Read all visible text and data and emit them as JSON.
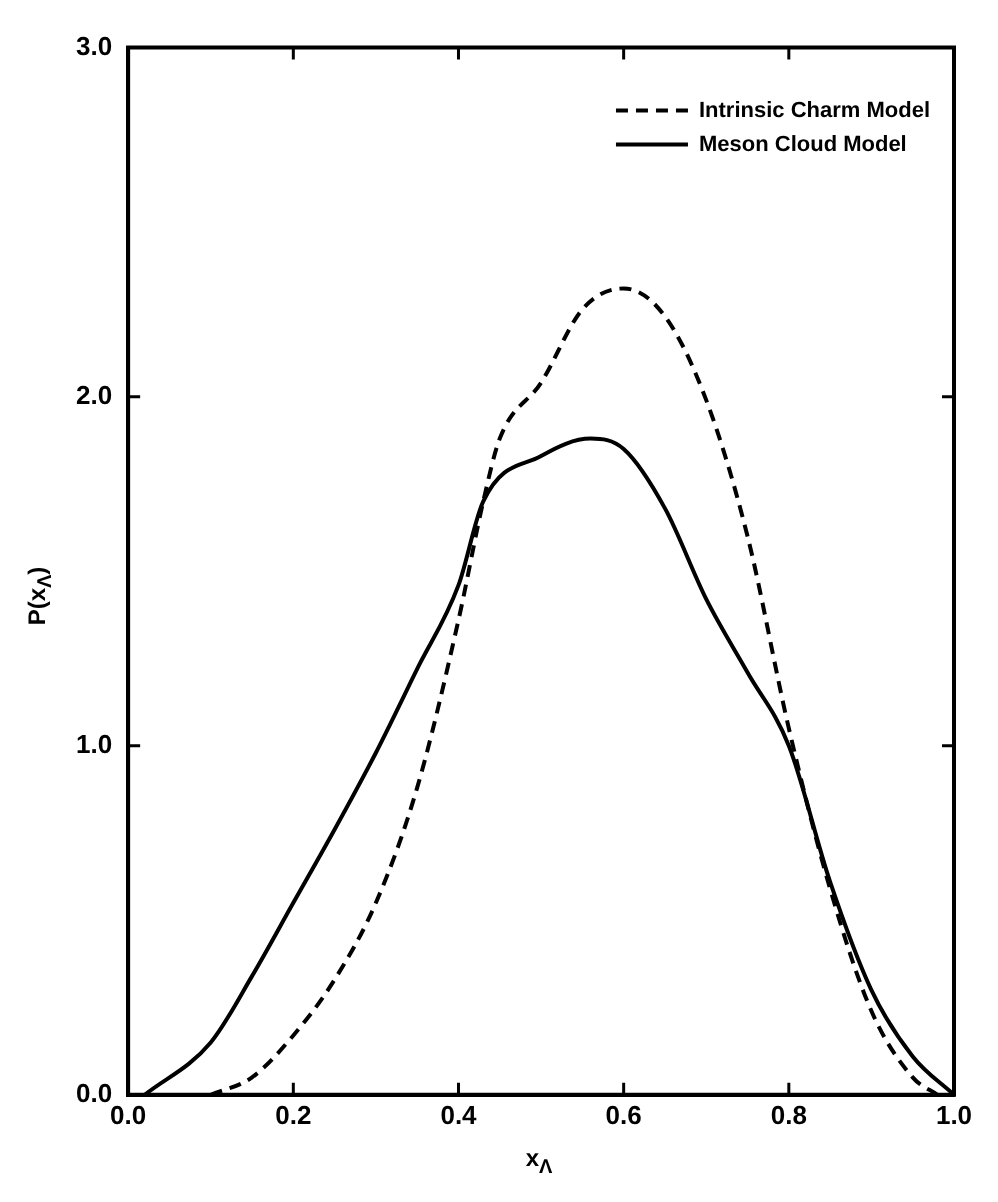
{
  "chart_data": {
    "type": "line",
    "xlabel": "x$_{Λ}$",
    "ylabel": "P(x$_{Λ}$)",
    "xlim": [
      0,
      1
    ],
    "ylim": [
      0,
      3
    ],
    "xticks": [
      {
        "value": 0,
        "label": "0.0"
      },
      {
        "value": 0.2,
        "label": "0.2"
      },
      {
        "value": 0.4,
        "label": "0.4"
      },
      {
        "value": 0.6,
        "label": "0.6"
      },
      {
        "value": 0.8,
        "label": "0.8"
      },
      {
        "value": 1,
        "label": "1.0"
      }
    ],
    "yticks": [
      {
        "value": 0,
        "label": "0.0"
      },
      {
        "value": 1,
        "label": "1.0"
      },
      {
        "value": 2,
        "label": "2.0"
      },
      {
        "value": 3,
        "label": "3.0"
      }
    ],
    "grid": false,
    "legend": "top right",
    "marker": "none",
    "series": [
      {
        "name": "Intrinsic Charm Model",
        "color": "#000000",
        "line_style": "dashed",
        "x": [
          0.1,
          0.15,
          0.2,
          0.25,
          0.3,
          0.35,
          0.4,
          0.43,
          0.45,
          0.5,
          0.55,
          0.6,
          0.65,
          0.7,
          0.75,
          0.8,
          0.85,
          0.9,
          0.95,
          0.98
        ],
        "values": [
          0,
          0.05,
          0.17,
          0.33,
          0.55,
          0.88,
          1.36,
          1.7,
          1.88,
          2.04,
          2.25,
          2.31,
          2.23,
          1.99,
          1.6,
          1.05,
          0.59,
          0.24,
          0.05,
          0
        ]
      },
      {
        "name": "Meson Cloud Model",
        "color": "#000000",
        "line_style": "solid",
        "x": [
          0.02,
          0.1,
          0.15,
          0.2,
          0.25,
          0.3,
          0.35,
          0.4,
          0.43,
          0.5,
          0.56,
          0.6,
          0.65,
          0.7,
          0.75,
          0.8,
          0.85,
          0.9,
          0.95,
          1.0
        ],
        "values": [
          0,
          0.15,
          0.34,
          0.55,
          0.76,
          0.98,
          1.22,
          1.46,
          1.7,
          1.83,
          1.88,
          1.85,
          1.68,
          1.42,
          1.21,
          1.0,
          0.61,
          0.3,
          0.11,
          0
        ]
      }
    ]
  }
}
